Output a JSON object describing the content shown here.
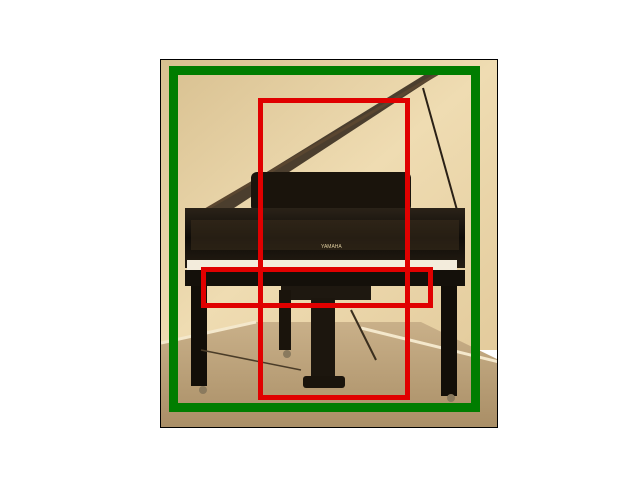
{
  "image": {
    "subject": "piano-photo",
    "brand_text": "YAMAHA",
    "tone": "sepia"
  },
  "annotations": {
    "regions": [
      {
        "name": "piano-whole",
        "color": "#007d00"
      },
      {
        "name": "piano-body",
        "color": "#e00000"
      },
      {
        "name": "piano-keyboard",
        "color": "#e00000"
      }
    ]
  },
  "colors": {
    "page_bg": "#ffffff",
    "frame_border": "#000000",
    "wall": "#e8d2a6",
    "floor": "#bfa57c",
    "piano_black": "#141008",
    "green_box": "#007d00",
    "red_box": "#e00000"
  }
}
